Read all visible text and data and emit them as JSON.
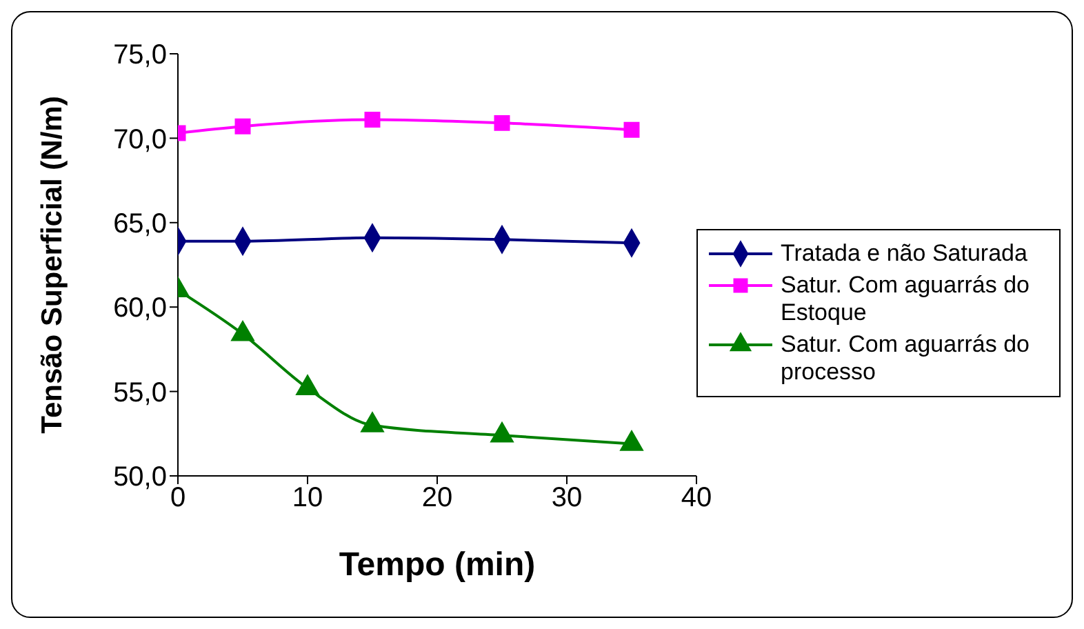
{
  "chart_data": {
    "type": "line",
    "xlabel": "Tempo (min)",
    "ylabel": "Tensão Superficial (N/m)",
    "xlim": [
      0,
      40
    ],
    "xticks": [
      0,
      10,
      20,
      30,
      40
    ],
    "ylim": [
      50,
      75
    ],
    "yticks": [
      {
        "value": 50,
        "label": "50,0"
      },
      {
        "value": 55,
        "label": "55,0"
      },
      {
        "value": 60,
        "label": "60,0"
      },
      {
        "value": 65,
        "label": "65,0"
      },
      {
        "value": 70,
        "label": "70,0"
      },
      {
        "value": 75,
        "label": "75,0"
      }
    ],
    "grid": false,
    "legend": "right",
    "line_style": "solid",
    "series": [
      {
        "name": "Tratada e não Saturada",
        "color": "#000080",
        "marker": "diamond",
        "x": [
          0,
          5,
          15,
          25,
          35
        ],
        "values": [
          63.9,
          63.9,
          64.1,
          64.0,
          63.8
        ]
      },
      {
        "name": "Satur. Com aguarrás do Estoque",
        "color": "#ff00ff",
        "marker": "square",
        "x": [
          0,
          5,
          15,
          25,
          35
        ],
        "values": [
          70.3,
          70.7,
          71.1,
          70.9,
          70.5
        ]
      },
      {
        "name": "Satur. Com aguarrás do processo",
        "color": "#008000",
        "marker": "triangle",
        "x": [
          0,
          5,
          10,
          15,
          25,
          35
        ],
        "values": [
          61.0,
          58.4,
          55.2,
          53.0,
          52.4,
          51.9
        ]
      }
    ]
  }
}
